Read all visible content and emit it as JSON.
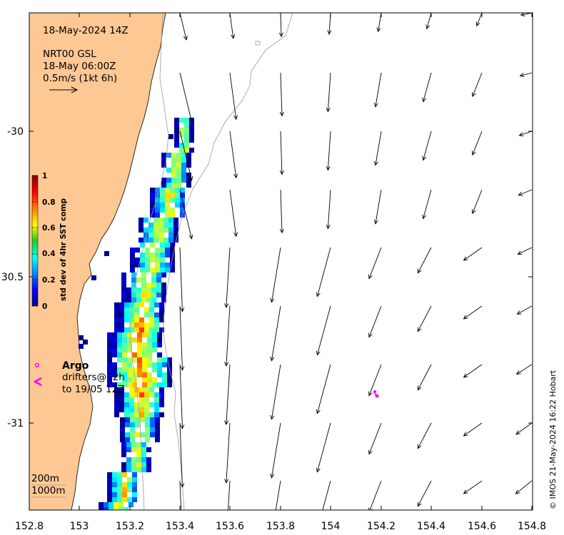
{
  "map": {
    "date_label": "18-May-2024 14Z",
    "product_label": "NRT00 GSL",
    "product_time": "18-May 06:00Z",
    "scale_label": "0.5m/s (1kt 6h)",
    "colorbar_title": "std dev of 4hr SST comp",
    "colorbar_ticks": [
      "0",
      "0.2",
      "0.4",
      "0.6",
      "0.8",
      "1"
    ],
    "legend_argo": "Argo",
    "legend_drifters_1": "drifters@12h",
    "legend_drifters_2": "to 19/05 12Z",
    "depth_label_1": "200m",
    "depth_label_2": "1000m",
    "credit": "© IMOS 21-May-2024 16:22 Hobart",
    "x_ticks": [
      "152.8",
      "153",
      "153.2",
      "153.4",
      "153.6",
      "153.8",
      "154",
      "154.2",
      "154.4",
      "154.6",
      "154.8"
    ],
    "y_ticks": [
      "-30",
      "30.5",
      "-31"
    ],
    "colors": {
      "land": "#fdc893",
      "argo": "#ff00ff",
      "contour": "#999999"
    }
  }
}
